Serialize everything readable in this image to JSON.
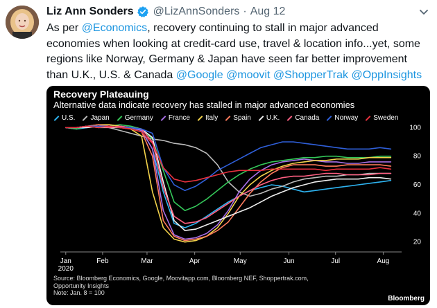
{
  "tweet": {
    "author_name": "Liz Ann Sonders",
    "handle": "@LizAnnSonders",
    "separator": "·",
    "date": "Aug 12",
    "text_segments": [
      {
        "text": "As per ",
        "mention": false
      },
      {
        "text": "@Economics",
        "mention": true
      },
      {
        "text": ", recovery continuing to stall in major advanced economies when looking at credit-card use, travel & location info...yet, some regions like Norway, Germany & Japan have seen far better improvement than U.K., U.S. & Canada ",
        "mention": false
      },
      {
        "text": "@Google",
        "mention": true
      },
      {
        "text": " ",
        "mention": false
      },
      {
        "text": "@moovit",
        "mention": true
      },
      {
        "text": " ",
        "mention": false
      },
      {
        "text": "@ShopperTrak",
        "mention": true
      },
      {
        "text": " ",
        "mention": false
      },
      {
        "text": "@OppInsights",
        "mention": true
      }
    ],
    "icons": {
      "avatar": "avatar",
      "verified": "verified-badge-icon",
      "menu": "chevron-down-icon"
    },
    "colors": {
      "mention": "#1b95e0",
      "secondary": "#536471",
      "verified": "#1da1f2"
    }
  },
  "chart": {
    "title": "Recovery Plateauing",
    "subtitle": "Alternative data indicate recovery has stalled in major advanced economies",
    "source_lines": [
      "Source: Bloomberg Economics, Google, Moovitapp.com, Bloomberg NEF, Shoppertrak.com,",
      "Opportunity Insights",
      "Note: Jan. 8 = 100"
    ],
    "brand": "Bloomberg"
  },
  "chart_data": {
    "type": "line",
    "title": "Recovery Plateauing",
    "subtitle": "Alternative data indicate recovery has stalled in major advanced economies",
    "x_unit": "weeks since Jan 8 2020",
    "x_ticks": [
      {
        "label": "Jan",
        "sublabel": "2020",
        "x": 0
      },
      {
        "label": "Feb",
        "x": 3.4
      },
      {
        "label": "Mar",
        "x": 7.5
      },
      {
        "label": "Apr",
        "x": 11.9
      },
      {
        "label": "May",
        "x": 16.1
      },
      {
        "label": "Jun",
        "x": 20.6
      },
      {
        "label": "Jul",
        "x": 24.9
      },
      {
        "label": "Aug",
        "x": 29.3
      }
    ],
    "xlim": [
      -0.5,
      31
    ],
    "ylim": [
      15,
      105
    ],
    "y_ticks": [
      20,
      40,
      60,
      80,
      100
    ],
    "legend_position": "top",
    "grid": false,
    "x": [
      0,
      1,
      2,
      3,
      4,
      5,
      6,
      7,
      8,
      9,
      10,
      11,
      12,
      13,
      14,
      15,
      16,
      17,
      18,
      19,
      20,
      21,
      22,
      23,
      24,
      25,
      26,
      27,
      28,
      29,
      30
    ],
    "series": [
      {
        "name": "U.S.",
        "color": "#2eb3f0",
        "values": [
          100,
          99,
          100,
          101,
          100,
          101,
          100,
          98,
          85,
          55,
          33,
          30,
          33,
          38,
          43,
          48,
          52,
          56,
          58,
          60,
          59,
          57,
          55,
          56,
          57,
          58,
          59,
          60,
          61,
          62,
          63
        ]
      },
      {
        "name": "Japan",
        "color": "#bbbbbb",
        "values": [
          100,
          100,
          101,
          100,
          100,
          98,
          96,
          94,
          92,
          91,
          89,
          88,
          86,
          82,
          74,
          62,
          55,
          52,
          54,
          57,
          59,
          62,
          64,
          65,
          66,
          66,
          67,
          67,
          68,
          68,
          68
        ]
      },
      {
        "name": "Germany",
        "color": "#34c759",
        "values": [
          100,
          99,
          101,
          100,
          101,
          102,
          101,
          99,
          92,
          70,
          48,
          42,
          45,
          50,
          56,
          62,
          67,
          71,
          74,
          76,
          77,
          78,
          79,
          79,
          80,
          80,
          79,
          79,
          79,
          80,
          80
        ]
      },
      {
        "name": "France",
        "color": "#a66ee6",
        "values": [
          100,
          100,
          101,
          101,
          102,
          101,
          100,
          98,
          85,
          42,
          25,
          22,
          23,
          26,
          32,
          42,
          55,
          64,
          70,
          74,
          76,
          77,
          78,
          77,
          76,
          76,
          75,
          75,
          76,
          76,
          76
        ]
      },
      {
        "name": "Italy",
        "color": "#f2d24b",
        "values": [
          100,
          100,
          101,
          102,
          102,
          101,
          99,
          94,
          55,
          30,
          22,
          20,
          21,
          24,
          30,
          40,
          52,
          60,
          66,
          70,
          73,
          75,
          76,
          77,
          77,
          78,
          78,
          78,
          79,
          79,
          79
        ]
      },
      {
        "name": "Spain",
        "color": "#ff7b5c",
        "values": [
          100,
          100,
          101,
          102,
          101,
          100,
          99,
          97,
          80,
          35,
          24,
          21,
          22,
          24,
          28,
          34,
          44,
          54,
          62,
          68,
          72,
          74,
          74,
          74,
          73,
          73,
          74,
          74,
          74,
          74,
          73
        ]
      },
      {
        "name": "U.K.",
        "color": "#eeeeee",
        "values": [
          100,
          100,
          100,
          101,
          100,
          100,
          100,
          99,
          93,
          62,
          35,
          28,
          29,
          32,
          35,
          38,
          41,
          44,
          48,
          52,
          55,
          58,
          60,
          62,
          63,
          64,
          64,
          64,
          65,
          65,
          64
        ]
      },
      {
        "name": "Canada",
        "color": "#ff5f82",
        "values": [
          100,
          100,
          101,
          101,
          100,
          101,
          100,
          99,
          90,
          58,
          38,
          33,
          34,
          37,
          42,
          47,
          52,
          56,
          60,
          63,
          65,
          66,
          66,
          67,
          68,
          68,
          67,
          67,
          67,
          68,
          68
        ]
      },
      {
        "name": "Norway",
        "color": "#2f5fd9",
        "values": [
          100,
          100,
          101,
          101,
          101,
          100,
          100,
          99,
          96,
          72,
          60,
          56,
          59,
          64,
          70,
          74,
          78,
          82,
          86,
          88,
          90,
          90,
          89,
          88,
          87,
          86,
          85,
          85,
          85,
          86,
          85
        ]
      },
      {
        "name": "Sweden",
        "color": "#e8313e",
        "values": [
          100,
          100,
          101,
          100,
          101,
          100,
          99,
          97,
          89,
          72,
          64,
          62,
          63,
          65,
          67,
          69,
          70,
          70,
          70,
          71,
          71,
          71,
          71,
          71,
          70,
          71,
          71,
          71,
          71,
          72,
          71
        ]
      }
    ]
  }
}
